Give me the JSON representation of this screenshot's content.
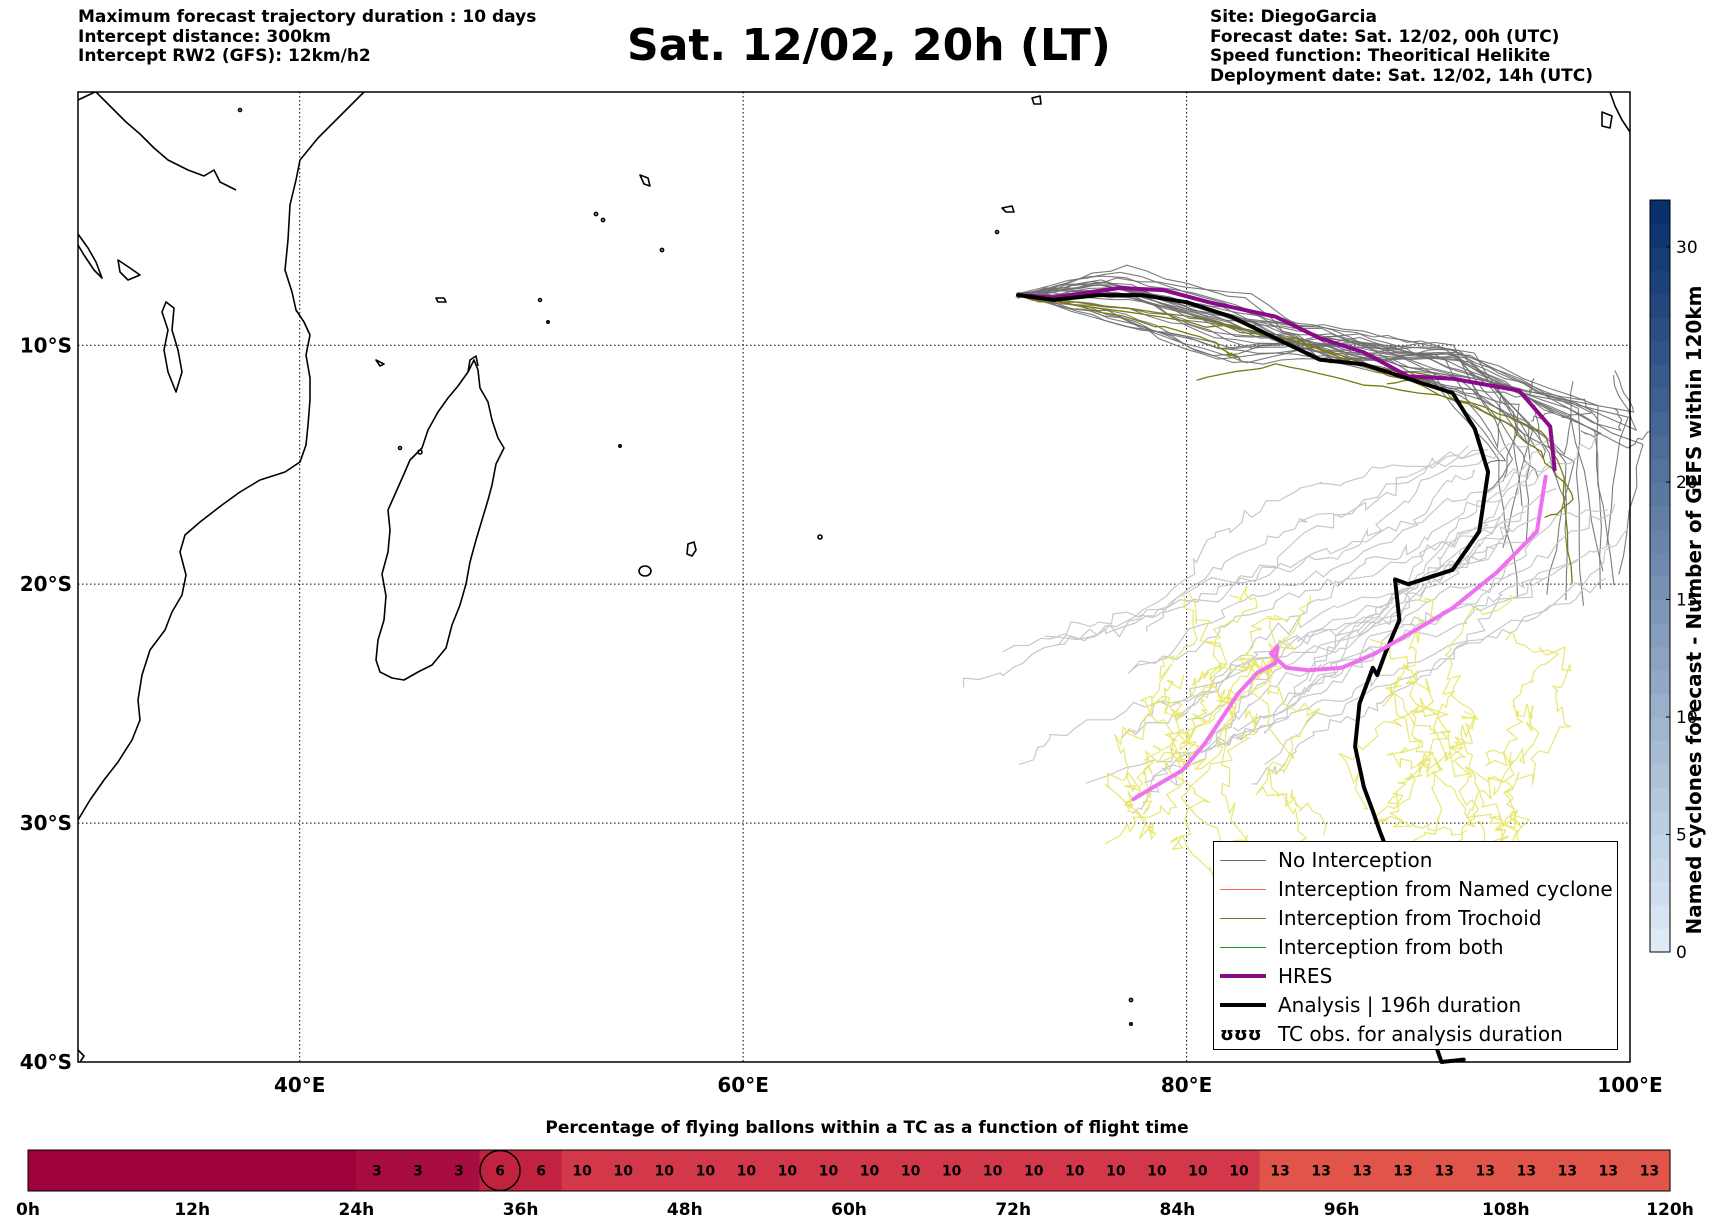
{
  "header_left": [
    "Maximum forecast trajectory duration : 10 days",
    "Intercept distance: 300km",
    "Intercept RW2 (GFS):  12km/h2"
  ],
  "header_right": [
    "Site: DiegoGarcia",
    "Forecast date: Sat. 12/02, 00h (UTC)",
    "Speed function: Theoritical Helikite",
    "Deployment date: Sat. 12/02, 14h (UTC)"
  ],
  "title": "Sat. 12/02, 20h (LT)",
  "colors": {
    "no_interception": "#6e6e6e",
    "named_cyclone": "#ff6a3d",
    "trochoid": "#7a7a10",
    "both": "#1a9a1a",
    "hres": "#8b0a8b",
    "analysis": "#000000",
    "tc_obs": "#ee72ee",
    "light_members": "#c8c8c8",
    "yellow_members": "#e8e870"
  },
  "chart_data": [
    {
      "type": "line",
      "x_ticks": [
        "40°E",
        "60°E",
        "80°E",
        "100°E"
      ],
      "y_ticks": [
        "10°S",
        "20°S",
        "30°S",
        "40°S"
      ],
      "xlim": [
        30,
        100
      ],
      "ylim": [
        -40,
        0.6
      ],
      "grid": true,
      "legend_position": "bottom-right",
      "legend": [
        {
          "label": "No Interception",
          "style": "no_interception"
        },
        {
          "label": "Interception from Named cyclone",
          "style": "named_cyclone"
        },
        {
          "label": "Interception from Trochoid",
          "style": "trochoid"
        },
        {
          "label": "Interception from both",
          "style": "both"
        },
        {
          "label": "HRES",
          "style": "hres"
        },
        {
          "label": "Analysis | 196h duration",
          "style": "analysis"
        },
        {
          "label": "TC obs. for analysis duration",
          "style": "tc_obs",
          "symbol": "ʊʊʊ"
        }
      ],
      "series": [
        {
          "name": "HRES",
          "lon": [
            72.4,
            74,
            77,
            79,
            81,
            84,
            86,
            88,
            90,
            92,
            95,
            96.4,
            96.6
          ],
          "lat": [
            -7.9,
            -8.0,
            -7.6,
            -7.7,
            -8.2,
            -8.8,
            -9.7,
            -10.3,
            -11.3,
            -11.4,
            -11.9,
            -13.4,
            -15.2
          ]
        },
        {
          "name": "Analysis | 196h duration",
          "lon": [
            72.4,
            74,
            76,
            78,
            80,
            82,
            84,
            86,
            88,
            90,
            92,
            93,
            93.6,
            93.2,
            92,
            90,
            89.4,
            89.6,
            89,
            88.6,
            88.4,
            87.8,
            87.6,
            88,
            88.4,
            88.7,
            89.2,
            89.4,
            90,
            91.5,
            92.5
          ],
          "lat": [
            -7.9,
            -8.1,
            -7.9,
            -7.9,
            -8.2,
            -8.8,
            -9.7,
            -10.6,
            -10.8,
            -11.4,
            -12,
            -13.5,
            -15.3,
            -17.8,
            -19.4,
            -20.0,
            -19.8,
            -21.5,
            -22.8,
            -23.8,
            -23.5,
            -25,
            -26.8,
            -28.5,
            -29.5,
            -30.3,
            -31.5,
            -32.5,
            -36,
            -40,
            -39.9
          ]
        },
        {
          "name": "TC obs. for analysis duration",
          "lon": [
            77.6,
            78.5,
            79.8,
            80.8,
            81.6,
            82.3,
            83.2,
            84,
            84.1,
            83.8,
            84.5,
            85.5,
            87,
            88.5,
            90,
            92,
            94,
            95.8,
            96.2
          ],
          "lat": [
            -29.0,
            -28.5,
            -27.8,
            -26.7,
            -25.6,
            -24.6,
            -23.7,
            -23.3,
            -22.6,
            -22.9,
            -23.5,
            -23.6,
            -23.5,
            -22.9,
            -22.1,
            -21.0,
            -19.5,
            -17.8,
            -15.5
          ]
        }
      ]
    },
    {
      "type": "colorbar",
      "label": "Named cyclones forecast - Number of GEFS within 120km",
      "ticks": [
        0,
        5,
        10,
        15,
        20,
        30
      ],
      "range": [
        0,
        32
      ]
    },
    {
      "type": "heatmap",
      "title": "Percentage of flying ballons within a TC as a function of flight time",
      "x_tick_labels": [
        "0h",
        "12h",
        "24h",
        "36h",
        "48h",
        "60h",
        "72h",
        "84h",
        "96h",
        "108h",
        "120h"
      ],
      "hours": [
        0,
        120
      ],
      "cell_hours": 3,
      "values": [
        0,
        0,
        0,
        0,
        0,
        0,
        0,
        0,
        3,
        3,
        3,
        6,
        6,
        10,
        10,
        10,
        10,
        10,
        10,
        10,
        10,
        10,
        10,
        10,
        10,
        10,
        10,
        10,
        10,
        10,
        13,
        13,
        13,
        13,
        13,
        13,
        13,
        13,
        13,
        13
      ],
      "circled_index": 11
    }
  ]
}
